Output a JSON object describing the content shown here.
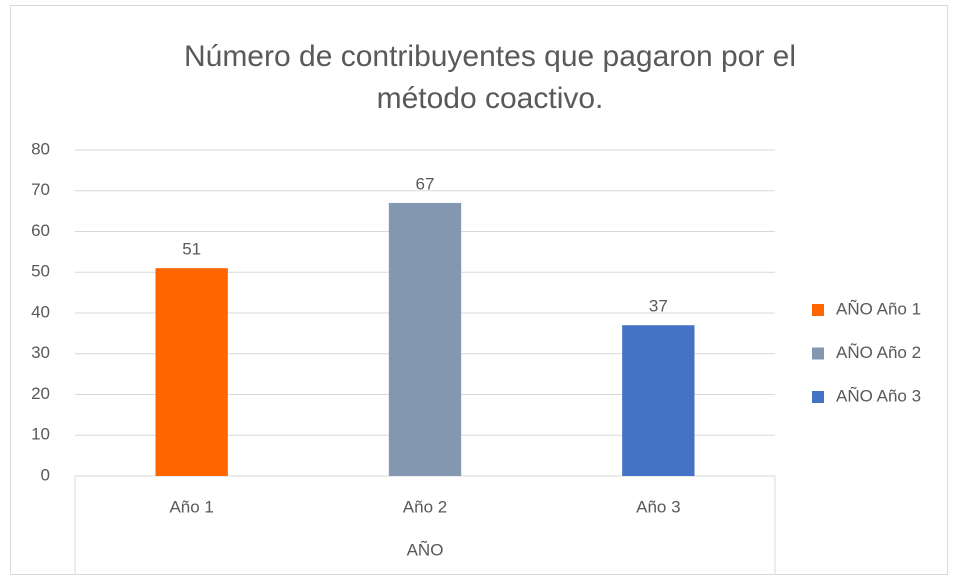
{
  "chart_data": {
    "type": "bar",
    "title": "Número de contribuyentes que pagaron por el método coactivo.",
    "categories": [
      "Año 1",
      "Año 2",
      "Año 3"
    ],
    "x_group_label": "AÑO",
    "series": [
      {
        "name": "AÑO Año 1",
        "color": "#ff6600",
        "values": [
          51,
          null,
          null
        ]
      },
      {
        "name": "AÑO Año 2",
        "color": "#8497b0",
        "values": [
          null,
          67,
          null
        ]
      },
      {
        "name": "AÑO Año 3",
        "color": "#4472c4",
        "values": [
          null,
          null,
          37
        ]
      }
    ],
    "ylim": [
      0,
      80
    ],
    "yticks": [
      0,
      10,
      20,
      30,
      40,
      50,
      60,
      70,
      80
    ],
    "grid": true,
    "legend": "right"
  }
}
